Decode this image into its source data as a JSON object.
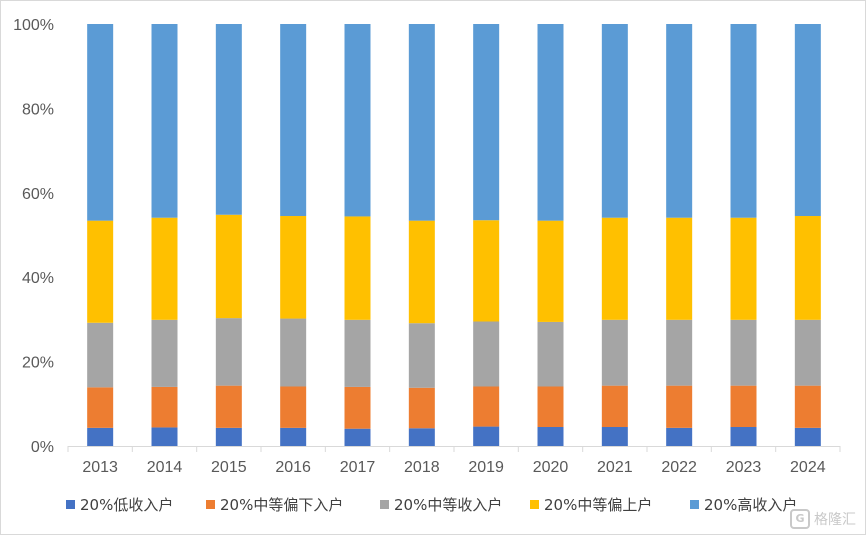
{
  "chart_data": {
    "type": "bar",
    "stacked": true,
    "categories": [
      "2013",
      "2014",
      "2015",
      "2016",
      "2017",
      "2018",
      "2019",
      "2020",
      "2021",
      "2022",
      "2023",
      "2024"
    ],
    "series": [
      {
        "name": "20%低收入户",
        "color": "#4472c4",
        "values": [
          4.3,
          4.4,
          4.3,
          4.3,
          4.1,
          4.2,
          4.6,
          4.5,
          4.5,
          4.3,
          4.5,
          4.3
        ]
      },
      {
        "name": "20%中等偏下入户",
        "color": "#ed7d31",
        "values": [
          9.6,
          9.6,
          10.0,
          9.8,
          9.9,
          9.6,
          9.5,
          9.6,
          9.8,
          10.0,
          9.8,
          10.0
        ]
      },
      {
        "name": "20%中等收入户",
        "color": "#a5a5a5",
        "values": [
          15.3,
          15.9,
          16.0,
          16.1,
          15.9,
          15.3,
          15.4,
          15.3,
          15.6,
          15.6,
          15.6,
          15.6
        ]
      },
      {
        "name": "20%中等偏上户",
        "color": "#ffc000",
        "values": [
          24.2,
          24.2,
          24.5,
          24.3,
          24.5,
          24.3,
          24.0,
          24.0,
          24.2,
          24.2,
          24.2,
          24.6
        ]
      },
      {
        "name": "20%高收入户",
        "color": "#5b9bd5",
        "values": [
          46.6,
          45.9,
          45.2,
          45.5,
          45.6,
          46.6,
          46.5,
          46.6,
          45.9,
          45.9,
          45.9,
          45.5
        ]
      }
    ],
    "ylim": [
      0,
      100
    ],
    "yticks": [
      "0%",
      "20%",
      "40%",
      "60%",
      "80%",
      "100%"
    ],
    "grid": false,
    "legend_position": "bottom"
  },
  "watermark": {
    "text": "格隆汇",
    "logo": "G"
  }
}
